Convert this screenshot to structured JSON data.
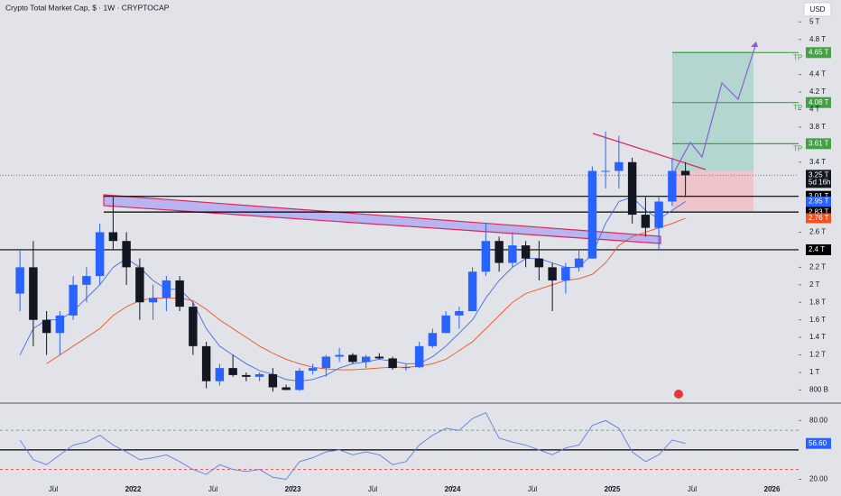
{
  "chart_data": {
    "type": "candlestick",
    "title": "Crypto Total Market Cap, $ · 1W · CRYPTOCAP",
    "currency": "USD",
    "x": [
      "2021-04",
      "2021-05",
      "2021-06",
      "2021-07",
      "2021-08",
      "2021-09",
      "2021-10",
      "2021-11",
      "2021-12",
      "2022-01",
      "2022-02",
      "2022-03",
      "2022-04",
      "2022-05",
      "2022-06",
      "2022-07",
      "2022-08",
      "2022-09",
      "2022-10",
      "2022-11",
      "2022-12",
      "2023-01",
      "2023-02",
      "2023-03",
      "2023-04",
      "2023-05",
      "2023-06",
      "2023-07",
      "2023-08",
      "2023-09",
      "2023-10",
      "2023-11",
      "2023-12",
      "2024-01",
      "2024-02",
      "2024-03",
      "2024-04",
      "2024-05",
      "2024-06",
      "2024-07",
      "2024-08",
      "2024-09",
      "2024-10",
      "2024-11",
      "2024-12",
      "2025-01",
      "2025-02",
      "2025-03",
      "2025-04",
      "2025-05",
      "2025-06"
    ],
    "open": [
      1.9,
      2.2,
      1.6,
      1.45,
      1.65,
      2.0,
      2.1,
      2.6,
      2.5,
      2.2,
      1.8,
      1.85,
      2.05,
      1.75,
      1.3,
      0.9,
      1.05,
      0.97,
      0.95,
      0.98,
      0.83,
      0.8,
      1.02,
      1.05,
      1.18,
      1.2,
      1.12,
      1.18,
      1.16,
      1.05,
      1.06,
      1.3,
      1.45,
      1.65,
      1.7,
      2.15,
      2.5,
      2.25,
      2.45,
      2.3,
      2.2,
      2.05,
      2.2,
      2.3,
      3.3,
      3.3,
      3.4,
      2.8,
      2.65,
      2.95,
      3.3
    ],
    "high": [
      2.4,
      2.5,
      1.7,
      1.7,
      2.1,
      2.2,
      2.7,
      3.0,
      2.6,
      2.3,
      2.0,
      2.1,
      2.1,
      1.8,
      1.35,
      1.1,
      1.2,
      1.0,
      1.0,
      1.05,
      0.86,
      1.05,
      1.1,
      1.2,
      1.28,
      1.22,
      1.2,
      1.22,
      1.18,
      1.1,
      1.35,
      1.5,
      1.7,
      1.75,
      2.2,
      2.7,
      2.55,
      2.6,
      2.5,
      2.5,
      2.25,
      2.25,
      2.4,
      3.35,
      3.75,
      3.7,
      3.45,
      3.0,
      3.0,
      3.45,
      3.4
    ],
    "low": [
      1.7,
      1.3,
      1.2,
      1.2,
      1.6,
      1.8,
      2.0,
      2.4,
      2.0,
      1.6,
      1.6,
      1.7,
      1.7,
      1.2,
      0.82,
      0.85,
      0.95,
      0.9,
      0.9,
      0.78,
      0.8,
      0.79,
      0.98,
      0.95,
      1.12,
      1.1,
      1.05,
      1.15,
      1.03,
      1.02,
      1.05,
      1.28,
      1.45,
      1.5,
      1.7,
      2.1,
      2.15,
      2.2,
      2.2,
      2.05,
      1.7,
      1.9,
      2.15,
      2.3,
      3.1,
      3.1,
      2.7,
      2.55,
      2.4,
      2.9,
      3.0
    ],
    "close": [
      2.2,
      1.6,
      1.45,
      1.65,
      2.0,
      2.1,
      2.6,
      2.5,
      2.2,
      1.8,
      1.85,
      2.05,
      1.75,
      1.3,
      0.9,
      1.05,
      0.97,
      0.95,
      0.98,
      0.83,
      0.8,
      1.02,
      1.05,
      1.18,
      1.2,
      1.12,
      1.18,
      1.16,
      1.05,
      1.06,
      1.3,
      1.45,
      1.65,
      1.7,
      2.15,
      2.5,
      2.25,
      2.45,
      2.3,
      2.2,
      2.05,
      2.2,
      2.3,
      3.3,
      3.3,
      3.4,
      2.8,
      2.65,
      2.95,
      3.3,
      3.25
    ],
    "up_color": "#2962ff",
    "down_color": "#131722",
    "series": [
      {
        "color": "#3d6cf0",
        "values": [
          1.2,
          1.5,
          1.6,
          1.6,
          1.7,
          1.85,
          2.0,
          2.2,
          2.3,
          2.2,
          2.05,
          1.95,
          1.95,
          1.8,
          1.5,
          1.3,
          1.2,
          1.1,
          1.02,
          0.98,
          0.92,
          0.9,
          0.92,
          0.97,
          1.05,
          1.1,
          1.12,
          1.15,
          1.13,
          1.1,
          1.1,
          1.18,
          1.3,
          1.45,
          1.6,
          1.85,
          2.05,
          2.2,
          2.3,
          2.3,
          2.25,
          2.2,
          2.2,
          2.35,
          2.7,
          2.95,
          3.0,
          2.85,
          2.75,
          2.85,
          2.95
        ]
      },
      {
        "color": "#f4511e",
        "values": [
          null,
          null,
          1.1,
          1.2,
          1.3,
          1.4,
          1.5,
          1.65,
          1.75,
          1.82,
          1.85,
          1.85,
          1.85,
          1.82,
          1.72,
          1.6,
          1.5,
          1.4,
          1.3,
          1.22,
          1.15,
          1.1,
          1.06,
          1.04,
          1.03,
          1.03,
          1.04,
          1.05,
          1.06,
          1.06,
          1.07,
          1.1,
          1.15,
          1.25,
          1.35,
          1.5,
          1.65,
          1.8,
          1.9,
          1.95,
          2.0,
          2.05,
          2.07,
          2.12,
          2.25,
          2.45,
          2.55,
          2.6,
          2.65,
          2.7,
          2.76
        ]
      }
    ],
    "xlim": [
      "2021-03",
      "2026-03"
    ],
    "xticks": [
      {
        "value": "2021-07",
        "label": "Jul"
      },
      {
        "value": "2022-01",
        "label": "2022"
      },
      {
        "value": "2022-07",
        "label": "Jul"
      },
      {
        "value": "2023-01",
        "label": "2023"
      },
      {
        "value": "2023-07",
        "label": "Jul"
      },
      {
        "value": "2024-01",
        "label": "2024"
      },
      {
        "value": "2024-07",
        "label": "Jul"
      },
      {
        "value": "2025-01",
        "label": "2025"
      },
      {
        "value": "2025-07",
        "label": "Jul"
      },
      {
        "value": "2026-01",
        "label": "2026"
      }
    ],
    "ylim": [
      0.65,
      5.25
    ],
    "yticks": [
      {
        "value": 5,
        "label": "5 T"
      },
      {
        "value": 4.8,
        "label": "4.8 T"
      },
      {
        "value": 4.4,
        "label": "4.4 T"
      },
      {
        "value": 4.2,
        "label": "4.2 T"
      },
      {
        "value": 4,
        "label": "4 T"
      },
      {
        "value": 3.8,
        "label": "3.8 T"
      },
      {
        "value": 3.4,
        "label": "3.4 T"
      },
      {
        "value": 2.6,
        "label": "2.6 T"
      },
      {
        "value": 2.2,
        "label": "2.2 T"
      },
      {
        "value": 2,
        "label": "2 T"
      },
      {
        "value": 1.8,
        "label": "1.8 T"
      },
      {
        "value": 1.6,
        "label": "1.6 T"
      },
      {
        "value": 1.4,
        "label": "1.4 T"
      },
      {
        "value": 1.2,
        "label": "1.2 T"
      },
      {
        "value": 1,
        "label": "1 T"
      },
      {
        "value": 0.8,
        "label": "800 B"
      }
    ],
    "levels": [
      {
        "value": 4.65,
        "label": "4.65 T",
        "color": "#43a047",
        "note": "TP"
      },
      {
        "value": 4.08,
        "label": "4.08 T",
        "color": "#43a047",
        "note": "TP"
      },
      {
        "value": 3.61,
        "label": "3.61 T",
        "color": "#43a047",
        "note": "TP"
      },
      {
        "value": 3.01,
        "label": "3.01 T",
        "color": "#000000"
      },
      {
        "value": 2.83,
        "label": "2.83 T",
        "color": "#000000"
      },
      {
        "value": 2.4,
        "label": "2.4 T",
        "color": "#000000"
      }
    ],
    "last": {
      "value": 3.25,
      "label": "3.25 T",
      "countdown": "5d 16h"
    },
    "ma_labels": [
      {
        "value": 2.95,
        "label": "2.95 T",
        "color": "#2962ff"
      },
      {
        "value": 2.76,
        "label": "2.76 T",
        "color": "#f4511e"
      }
    ],
    "rsi": {
      "color": "#5b7fe0",
      "values": [
        60,
        40,
        35,
        45,
        55,
        58,
        65,
        55,
        48,
        40,
        42,
        45,
        38,
        30,
        25,
        35,
        30,
        28,
        30,
        22,
        20,
        38,
        42,
        48,
        50,
        45,
        48,
        45,
        35,
        38,
        55,
        65,
        72,
        70,
        82,
        88,
        62,
        58,
        55,
        50,
        45,
        52,
        55,
        75,
        80,
        72,
        48,
        38,
        45,
        60,
        56.6
      ],
      "last_value_label": "56.60",
      "ylim": [
        14,
        95
      ],
      "yticks": [
        {
          "value": 80,
          "label": "80.00"
        },
        {
          "value": 20,
          "label": "20.00"
        }
      ],
      "bands": [
        70,
        30
      ],
      "mid": 50
    }
  }
}
